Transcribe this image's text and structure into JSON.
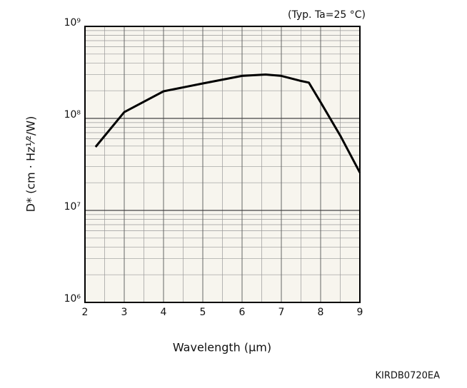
{
  "chart_data": {
    "type": "line",
    "annotation": "(Typ. Ta=25 °C)",
    "footnote": "KIRDB0720EA",
    "x_label": "Wavelength (μm)",
    "y_label": "D* (cm · Hz¹⁄²/W)",
    "x": [
      2.27,
      3,
      4,
      5,
      6,
      6.6,
      7,
      7.47,
      7.7,
      8,
      8.5,
      9
    ],
    "values": [
      49000000,
      117000000,
      197000000,
      240000000,
      290000000,
      300000000,
      290000000,
      257000000,
      245000000,
      150000000,
      65000000,
      25700000
    ],
    "color": "#000000",
    "log_y": true,
    "grid": true,
    "xlim": [
      2,
      9
    ],
    "xticks": [
      2,
      3,
      4,
      5,
      6,
      7,
      8,
      9
    ],
    "ylim": [
      1000000,
      1000000000
    ],
    "yticks": [
      {
        "value": 1000000,
        "label": "10⁶"
      },
      {
        "value": 10000000,
        "label": "10⁷"
      },
      {
        "value": 100000000,
        "label": "10⁸"
      },
      {
        "value": 1000000000,
        "label": "10⁹"
      }
    ]
  }
}
